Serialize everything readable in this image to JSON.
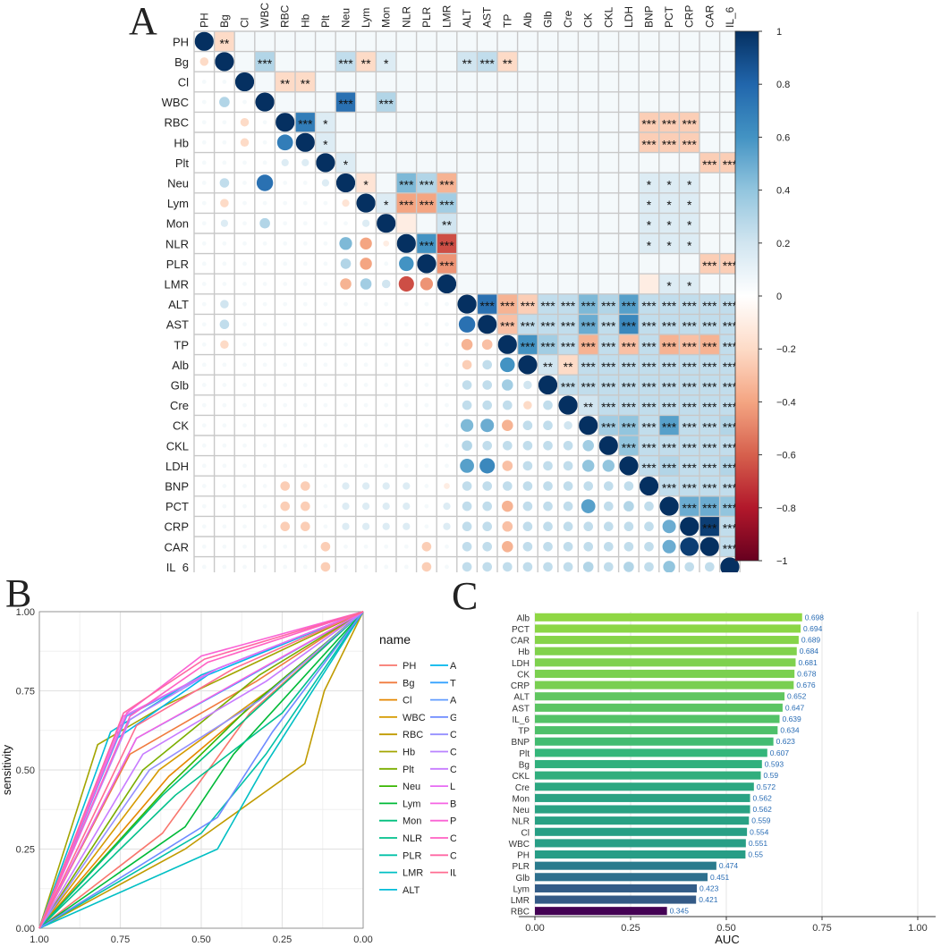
{
  "panels": {
    "a": "A",
    "b": "B",
    "c": "C"
  },
  "variables": [
    "PH",
    "Bg",
    "Cl",
    "WBC",
    "RBC",
    "Hb",
    "Plt",
    "Neu",
    "Lym",
    "Mon",
    "NLR",
    "PLR",
    "LMR",
    "ALT",
    "AST",
    "TP",
    "Alb",
    "Glb",
    "Cre",
    "CK",
    "CKL",
    "LDH",
    "BNP",
    "PCT",
    "CRP",
    "CAR",
    "IL_6"
  ],
  "chart_data": [
    {
      "type": "heatmap",
      "title": "",
      "description_of_layout": "upper triangle shaded tiles with significance stars; lower triangle circles sized and coloured by correlation",
      "variables": [
        "PH",
        "Bg",
        "Cl",
        "WBC",
        "RBC",
        "Hb",
        "Plt",
        "Neu",
        "Lym",
        "Mon",
        "NLR",
        "PLR",
        "LMR",
        "ALT",
        "AST",
        "TP",
        "Alb",
        "Glb",
        "Cre",
        "CK",
        "CKL",
        "LDH",
        "BNP",
        "PCT",
        "CRP",
        "CAR",
        "IL_6"
      ],
      "groups": {
        "PH": [],
        "Bg": [],
        "Cl": [],
        "WBC": [],
        "RBC": [
          0,
          1,
          0
        ],
        "Hb": [
          0,
          1,
          0
        ],
        "Plt": [
          0,
          0,
          1
        ],
        "Neu": [
          0,
          2,
          0
        ],
        "Lym": [
          0,
          2,
          0
        ],
        "Mon": [
          0,
          2,
          0
        ],
        "NLR": [
          0,
          2,
          0
        ],
        "PLR": [
          0,
          0,
          1
        ],
        "LMR": [
          0,
          2,
          0
        ]
      },
      "overrides": [
        [
          "Bg",
          "PH",
          -0.2
        ],
        [
          "WBC",
          "Bg",
          0.3
        ],
        [
          "RBC",
          "Cl",
          -0.2
        ],
        [
          "Hb",
          "Cl",
          -0.2
        ],
        [
          "Hb",
          "RBC",
          0.7
        ],
        [
          "Plt",
          "RBC",
          0.15
        ],
        [
          "Plt",
          "Hb",
          0.15
        ],
        [
          "Neu",
          "Bg",
          0.25
        ],
        [
          "Neu",
          "WBC",
          0.75
        ],
        [
          "Neu",
          "Plt",
          0.15
        ],
        [
          "Lym",
          "Bg",
          -0.2
        ],
        [
          "Lym",
          "Neu",
          -0.15
        ],
        [
          "Mon",
          "Bg",
          0.15
        ],
        [
          "Mon",
          "WBC",
          0.3
        ],
        [
          "Mon",
          "Lym",
          0.15
        ],
        [
          "NLR",
          "Neu",
          0.45
        ],
        [
          "NLR",
          "Lym",
          -0.4
        ],
        [
          "NLR",
          "Mon",
          -0.1
        ],
        [
          "PLR",
          "Neu",
          0.3
        ],
        [
          "PLR",
          "Lym",
          -0.4
        ],
        [
          "PLR",
          "NLR",
          0.6
        ],
        [
          "LMR",
          "Neu",
          -0.35
        ],
        [
          "LMR",
          "Lym",
          0.35
        ],
        [
          "LMR",
          "Mon",
          0.2
        ],
        [
          "LMR",
          "NLR",
          -0.65
        ],
        [
          "LMR",
          "PLR",
          -0.45
        ],
        [
          "ALT",
          "Bg",
          0.2
        ],
        [
          "AST",
          "Bg",
          0.25
        ],
        [
          "AST",
          "ALT",
          0.75
        ],
        [
          "TP",
          "Bg",
          -0.2
        ],
        [
          "TP",
          "ALT",
          -0.35
        ],
        [
          "TP",
          "AST",
          -0.3
        ],
        [
          "Alb",
          "ALT",
          -0.25
        ],
        [
          "Alb",
          "TP",
          0.6
        ],
        [
          "Glb",
          "TP",
          0.35
        ],
        [
          "Glb",
          "Alb",
          0.2
        ],
        [
          "Cre",
          "Alb",
          -0.2
        ],
        [
          "CK",
          "ALT",
          0.45
        ],
        [
          "CK",
          "AST",
          0.5
        ],
        [
          "CK",
          "TP",
          -0.35
        ],
        [
          "CK",
          "Cre",
          0.2
        ],
        [
          "CKL",
          "ALT",
          0.3
        ],
        [
          "CKL",
          "CK",
          0.35
        ],
        [
          "LDH",
          "ALT",
          0.55
        ],
        [
          "LDH",
          "AST",
          0.65
        ],
        [
          "LDH",
          "TP",
          -0.3
        ],
        [
          "LDH",
          "CK",
          0.4
        ],
        [
          "LDH",
          "CKL",
          0.4
        ],
        [
          "BNP",
          "LMR",
          -0.1
        ],
        [
          "PCT",
          "TP",
          -0.35
        ],
        [
          "PCT",
          "CK",
          0.55
        ],
        [
          "PCT",
          "LDH",
          0.3
        ],
        [
          "CRP",
          "TP",
          -0.3
        ],
        [
          "CRP",
          "PCT",
          0.5
        ],
        [
          "CAR",
          "TP",
          -0.35
        ],
        [
          "CAR",
          "PCT",
          0.5
        ],
        [
          "CAR",
          "CRP",
          0.95
        ],
        [
          "IL_6",
          "PCT",
          0.4
        ],
        [
          "IL_6",
          "CK",
          0.3
        ],
        [
          "IL_6",
          "LDH",
          0.3
        ]
      ],
      "colorbar": {
        "min": -1,
        "max": 1,
        "ticks": [
          "1",
          "0.8",
          "0.6",
          "0.4",
          "0.2",
          "0",
          "−0.2",
          "−0.4",
          "−0.6",
          "−0.8",
          "−1"
        ]
      }
    },
    {
      "type": "line",
      "title": "",
      "xlabel": "specificity",
      "ylabel": "sensitivity",
      "xlim": [
        1,
        0
      ],
      "ylim": [
        0,
        1
      ],
      "x_ticks": [
        "1.00",
        "0.75",
        "0.50",
        "0.25",
        "0.00"
      ],
      "y_ticks": [
        "0.00",
        "0.25",
        "0.50",
        "0.75",
        "1.00"
      ],
      "legend_title": "name",
      "legend_left": [
        "PH",
        "Bg",
        "Cl",
        "WBC",
        "RBC",
        "Hb",
        "Plt",
        "Neu",
        "Lym",
        "Mon",
        "NLR",
        "PLR",
        "LMR",
        "ALT"
      ],
      "legend_right": [
        "AST",
        "TP",
        "Alb",
        "Glb",
        "Cre",
        "CK",
        "CKL",
        "LDH",
        "BNP",
        "PCT",
        "CRP",
        "CAR",
        "IL_6"
      ],
      "legend_colors": [
        "#f8766d",
        "#f07b3f",
        "#e58700",
        "#d59a00",
        "#c09b00",
        "#a3a500",
        "#7cae00",
        "#39b600",
        "#00ba38",
        "#00bf7d",
        "#00c08b",
        "#00c1a7",
        "#00bfc4",
        "#00bcd8",
        "#00b6eb",
        "#35a2ff",
        "#619cff",
        "#6e8bff",
        "#9590ff",
        "#b983ff",
        "#c77cff",
        "#e76bf3",
        "#f564e3",
        "#fa62d4",
        "#ff61c3",
        "#ff67a4",
        "#ff6c91"
      ],
      "series": [
        {
          "name": "PH",
          "x": [
            1,
            0.62,
            0.35,
            0
          ],
          "y": [
            0,
            0.3,
            0.68,
            1
          ]
        },
        {
          "name": "Bg",
          "x": [
            1,
            0.72,
            0.33,
            0
          ],
          "y": [
            0,
            0.55,
            0.78,
            1
          ]
        },
        {
          "name": "Cl",
          "x": [
            1,
            0.6,
            0.3,
            0
          ],
          "y": [
            0,
            0.48,
            0.74,
            1
          ]
        },
        {
          "name": "WBC",
          "x": [
            1,
            0.63,
            0.28,
            0
          ],
          "y": [
            0,
            0.5,
            0.76,
            1
          ]
        },
        {
          "name": "RBC",
          "x": [
            1,
            0.55,
            0.18,
            0.12,
            0
          ],
          "y": [
            0,
            0.25,
            0.52,
            0.75,
            1
          ]
        },
        {
          "name": "Hb",
          "x": [
            1,
            0.82,
            0.62,
            0
          ],
          "y": [
            0,
            0.58,
            0.7,
            1
          ]
        },
        {
          "name": "Plt",
          "x": [
            1,
            0.68,
            0.32,
            0
          ],
          "y": [
            0,
            0.5,
            0.8,
            1
          ]
        },
        {
          "name": "Neu",
          "x": [
            1,
            0.6,
            0.35,
            0
          ],
          "y": [
            0,
            0.45,
            0.7,
            1
          ]
        },
        {
          "name": "Lym",
          "x": [
            1,
            0.55,
            0.4,
            0
          ],
          "y": [
            0,
            0.32,
            0.55,
            1
          ]
        },
        {
          "name": "Mon",
          "x": [
            1,
            0.62,
            0.3,
            0
          ],
          "y": [
            0,
            0.42,
            0.72,
            1
          ]
        },
        {
          "name": "NLR",
          "x": [
            1,
            0.58,
            0.25,
            0
          ],
          "y": [
            0,
            0.42,
            0.68,
            1
          ]
        },
        {
          "name": "PLR",
          "x": [
            1,
            0.5,
            0.3,
            0
          ],
          "y": [
            0,
            0.3,
            0.55,
            1
          ]
        },
        {
          "name": "LMR",
          "x": [
            1,
            0.45,
            0.3,
            0
          ],
          "y": [
            0,
            0.25,
            0.52,
            1
          ]
        },
        {
          "name": "ALT",
          "x": [
            1,
            0.78,
            0.5,
            0
          ],
          "y": [
            0,
            0.62,
            0.8,
            1
          ]
        },
        {
          "name": "AST",
          "x": [
            1,
            0.76,
            0.48,
            0
          ],
          "y": [
            0,
            0.6,
            0.8,
            1
          ]
        },
        {
          "name": "TP",
          "x": [
            1,
            0.7,
            0.38,
            0
          ],
          "y": [
            0,
            0.6,
            0.78,
            1
          ]
        },
        {
          "name": "Alb",
          "x": [
            1,
            0.73,
            0.45,
            0
          ],
          "y": [
            0,
            0.67,
            0.82,
            1
          ]
        },
        {
          "name": "Glb",
          "x": [
            1,
            0.45,
            0.28,
            0
          ],
          "y": [
            0,
            0.35,
            0.62,
            1
          ]
        },
        {
          "name": "Cre",
          "x": [
            1,
            0.66,
            0.32,
            0
          ],
          "y": [
            0,
            0.5,
            0.72,
            1
          ]
        },
        {
          "name": "CK",
          "x": [
            1,
            0.72,
            0.45,
            0
          ],
          "y": [
            0,
            0.66,
            0.82,
            1
          ]
        },
        {
          "name": "CKL",
          "x": [
            1,
            0.68,
            0.3,
            0
          ],
          "y": [
            0,
            0.55,
            0.78,
            1
          ]
        },
        {
          "name": "LDH",
          "x": [
            1,
            0.74,
            0.45,
            0
          ],
          "y": [
            0,
            0.67,
            0.82,
            1
          ]
        },
        {
          "name": "BNP",
          "x": [
            1,
            0.7,
            0.35,
            0
          ],
          "y": [
            0,
            0.6,
            0.8,
            1
          ]
        },
        {
          "name": "PCT",
          "x": [
            1,
            0.73,
            0.5,
            0
          ],
          "y": [
            0,
            0.68,
            0.86,
            1
          ]
        },
        {
          "name": "CRP",
          "x": [
            1,
            0.72,
            0.48,
            0
          ],
          "y": [
            0,
            0.67,
            0.84,
            1
          ]
        },
        {
          "name": "CAR",
          "x": [
            1,
            0.74,
            0.49,
            0
          ],
          "y": [
            0,
            0.68,
            0.85,
            1
          ]
        },
        {
          "name": "IL_6",
          "x": [
            1,
            0.7,
            0.4,
            0
          ],
          "y": [
            0,
            0.64,
            0.82,
            1
          ]
        }
      ]
    },
    {
      "type": "bar",
      "orientation": "horizontal",
      "title": "",
      "xlabel": "AUC",
      "ylabel": "",
      "xlim": [
        0,
        1
      ],
      "x_ticks": [
        "0.00",
        "0.25",
        "0.50",
        "0.75",
        "1.00"
      ],
      "categories": [
        "Alb",
        "PCT",
        "CAR",
        "Hb",
        "LDH",
        "CK",
        "CRP",
        "ALT",
        "AST",
        "IL_6",
        "TP",
        "BNP",
        "Plt",
        "Bg",
        "CKL",
        "Cre",
        "Mon",
        "Neu",
        "NLR",
        "Cl",
        "WBC",
        "PH",
        "PLR",
        "Glb",
        "Lym",
        "LMR",
        "RBC"
      ],
      "values": [
        0.698,
        0.694,
        0.689,
        0.684,
        0.681,
        0.678,
        0.676,
        0.652,
        0.647,
        0.639,
        0.634,
        0.623,
        0.607,
        0.593,
        0.59,
        0.572,
        0.562,
        0.562,
        0.559,
        0.554,
        0.551,
        0.55,
        0.474,
        0.451,
        0.423,
        0.421,
        0.345
      ],
      "labels": [
        "0.698",
        "0.694",
        "0.689",
        "0.684",
        "0.681",
        "0.678",
        "0.676",
        "0.652",
        "0.647",
        "0.639",
        "0.634",
        "0.623",
        "0.607",
        "0.593",
        "0.59",
        "0.572",
        "0.562",
        "0.562",
        "0.559",
        "0.554",
        "0.551",
        "0.55",
        "0.474",
        "0.451",
        "0.423",
        "0.421",
        "0.345"
      ]
    }
  ]
}
